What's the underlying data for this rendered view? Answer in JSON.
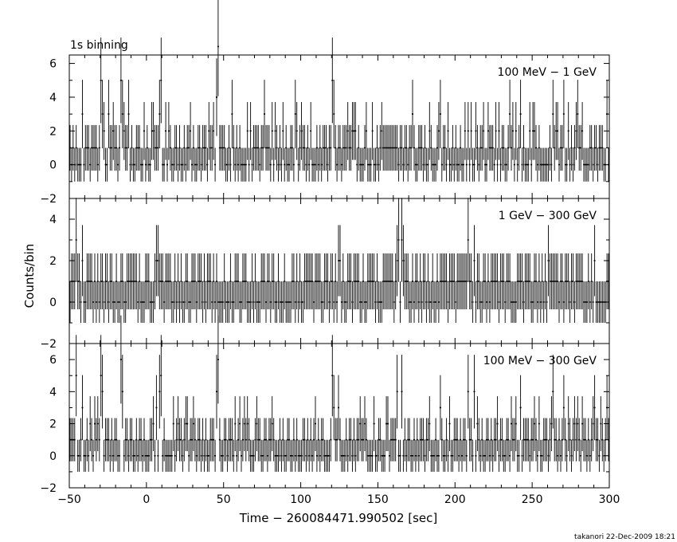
{
  "figure": {
    "header": "1s binning",
    "ylabel": "Counts/bin",
    "xlabel": "Time − 260084471.990502 [sec]",
    "footer": "takanori 22-Dec-2009 18:21"
  },
  "chart_data": [
    {
      "type": "line",
      "panel": "top",
      "annotation": "100 MeV − 1 GeV",
      "xlim": [
        -50,
        300
      ],
      "ylim": [
        -2,
        6.5
      ],
      "yticks": [
        -2,
        0,
        2,
        4,
        6
      ],
      "bin_width_sec": 1,
      "error_bars": true,
      "baseline_levels": [
        0,
        1,
        2
      ],
      "peaks": [
        {
          "x": -42,
          "y": 3
        },
        {
          "x": -30,
          "y": 5
        },
        {
          "x": -29,
          "y": 3
        },
        {
          "x": -25,
          "y": 3
        },
        {
          "x": -17,
          "y": 5
        },
        {
          "x": -16,
          "y": 3
        },
        {
          "x": -12,
          "y": 3
        },
        {
          "x": 8,
          "y": 3
        },
        {
          "x": 9,
          "y": 5
        },
        {
          "x": 45,
          "y": 4
        },
        {
          "x": 46,
          "y": 7
        },
        {
          "x": 55,
          "y": 3
        },
        {
          "x": 76,
          "y": 3
        },
        {
          "x": 96,
          "y": 3
        },
        {
          "x": 120,
          "y": 5
        },
        {
          "x": 121,
          "y": 3
        },
        {
          "x": 172,
          "y": 3
        },
        {
          "x": 190,
          "y": 3
        },
        {
          "x": 235,
          "y": 3
        },
        {
          "x": 242,
          "y": 3
        },
        {
          "x": 263,
          "y": 3
        },
        {
          "x": 270,
          "y": 3
        },
        {
          "x": 279,
          "y": 3
        },
        {
          "x": 298,
          "y": 3
        }
      ]
    },
    {
      "type": "line",
      "panel": "middle",
      "annotation": "1 GeV − 300 GeV",
      "xlim": [
        -50,
        300
      ],
      "ylim": [
        -2,
        5
      ],
      "yticks": [
        -2,
        0,
        2,
        4
      ],
      "bin_width_sec": 1,
      "error_bars": true,
      "baseline_levels": [
        0,
        1
      ],
      "peaks": [
        {
          "x": -46,
          "y": 3
        },
        {
          "x": -42,
          "y": 2
        },
        {
          "x": -32,
          "y": 1
        },
        {
          "x": 6,
          "y": 2
        },
        {
          "x": 7,
          "y": 2
        },
        {
          "x": 59,
          "y": 1
        },
        {
          "x": 124,
          "y": 2
        },
        {
          "x": 125,
          "y": 2
        },
        {
          "x": 162,
          "y": 2
        },
        {
          "x": 163,
          "y": 3
        },
        {
          "x": 165,
          "y": 3
        },
        {
          "x": 166,
          "y": 2
        },
        {
          "x": 208,
          "y": 3
        },
        {
          "x": 212,
          "y": 2
        },
        {
          "x": 260,
          "y": 2
        },
        {
          "x": 290,
          "y": 2
        }
      ]
    },
    {
      "type": "line",
      "panel": "bottom",
      "annotation": "100 MeV − 300 GeV",
      "xlim": [
        -50,
        300
      ],
      "xticks": [
        -50,
        0,
        50,
        100,
        150,
        200,
        250,
        300
      ],
      "ylim": [
        -2,
        7
      ],
      "yticks": [
        -2,
        0,
        2,
        4,
        6
      ],
      "bin_width_sec": 1,
      "error_bars": true,
      "baseline_levels": [
        0,
        1,
        2
      ],
      "peaks": [
        {
          "x": -46,
          "y": 5
        },
        {
          "x": -42,
          "y": 3
        },
        {
          "x": -30,
          "y": 5
        },
        {
          "x": -29,
          "y": 4
        },
        {
          "x": -17,
          "y": 6
        },
        {
          "x": -16,
          "y": 4
        },
        {
          "x": 6,
          "y": 3
        },
        {
          "x": 8,
          "y": 4
        },
        {
          "x": 9,
          "y": 5
        },
        {
          "x": 45,
          "y": 4
        },
        {
          "x": 46,
          "y": 6
        },
        {
          "x": 120,
          "y": 5
        },
        {
          "x": 121,
          "y": 3
        },
        {
          "x": 124,
          "y": 3
        },
        {
          "x": 162,
          "y": 4
        },
        {
          "x": 165,
          "y": 4
        },
        {
          "x": 190,
          "y": 3
        },
        {
          "x": 208,
          "y": 4
        },
        {
          "x": 212,
          "y": 4
        },
        {
          "x": 242,
          "y": 3
        },
        {
          "x": 263,
          "y": 4
        },
        {
          "x": 270,
          "y": 3
        },
        {
          "x": 290,
          "y": 3
        },
        {
          "x": 298,
          "y": 3
        }
      ]
    }
  ]
}
